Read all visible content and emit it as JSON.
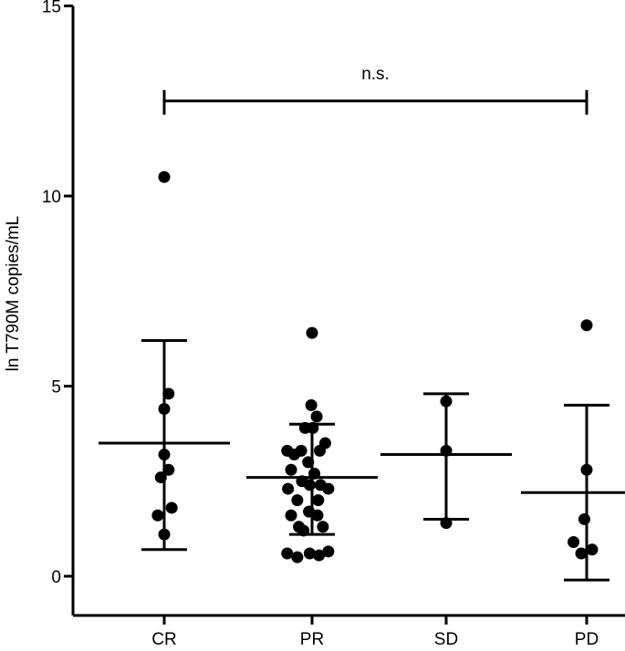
{
  "chart_data": {
    "type": "scatter",
    "title": "",
    "xlabel": "",
    "ylabel": "ln T790M copies/mL",
    "categories": [
      "CR",
      "PR",
      "SD",
      "PD"
    ],
    "ylim": [
      -1,
      15
    ],
    "yticks": [
      0,
      5,
      10,
      15
    ],
    "grid": false,
    "annotation": {
      "text": "n.s.",
      "from": "CR",
      "to": "PD",
      "y": 12.5
    },
    "groups": [
      {
        "name": "CR",
        "mean": 3.5,
        "sd_low": 0.7,
        "sd_high": 6.2,
        "points": [
          {
            "x_jitter": 0.0,
            "y": 10.5
          },
          {
            "x_jitter": 0.0,
            "y": 4.4
          },
          {
            "x_jitter": 0.28,
            "y": 4.8
          },
          {
            "x_jitter": 0.0,
            "y": 3.2
          },
          {
            "x_jitter": -0.22,
            "y": 2.6
          },
          {
            "x_jitter": 0.28,
            "y": 2.8
          },
          {
            "x_jitter": 0.48,
            "y": 1.8
          },
          {
            "x_jitter": -0.42,
            "y": 1.6
          },
          {
            "x_jitter": 0.0,
            "y": 1.1
          }
        ]
      },
      {
        "name": "PR",
        "mean": 2.6,
        "sd_low": 1.1,
        "sd_high": 4.0,
        "points": [
          {
            "x_jitter": 0.0,
            "y": 6.4
          },
          {
            "x_jitter": -0.05,
            "y": 4.5
          },
          {
            "x_jitter": 0.3,
            "y": 4.2
          },
          {
            "x_jitter": -0.45,
            "y": 3.9
          },
          {
            "x_jitter": 0.05,
            "y": 3.9
          },
          {
            "x_jitter": 0.85,
            "y": 3.5
          },
          {
            "x_jitter": -1.6,
            "y": 3.3
          },
          {
            "x_jitter": -0.7,
            "y": 3.3
          },
          {
            "x_jitter": 0.5,
            "y": 3.3
          },
          {
            "x_jitter": -1.15,
            "y": 3.2
          },
          {
            "x_jitter": -0.25,
            "y": 3.0
          },
          {
            "x_jitter": -1.35,
            "y": 2.8
          },
          {
            "x_jitter": -0.65,
            "y": 2.5
          },
          {
            "x_jitter": 0.15,
            "y": 2.7
          },
          {
            "x_jitter": -1.55,
            "y": 2.3
          },
          {
            "x_jitter": -0.15,
            "y": 2.4
          },
          {
            "x_jitter": 0.55,
            "y": 2.4
          },
          {
            "x_jitter": 1.05,
            "y": 2.3
          },
          {
            "x_jitter": -0.95,
            "y": 2.0
          },
          {
            "x_jitter": 0.4,
            "y": 2.0
          },
          {
            "x_jitter": -0.2,
            "y": 1.7
          },
          {
            "x_jitter": -1.35,
            "y": 1.6
          },
          {
            "x_jitter": 0.35,
            "y": 1.6
          },
          {
            "x_jitter": -0.85,
            "y": 1.3
          },
          {
            "x_jitter": 0.7,
            "y": 1.3
          },
          {
            "x_jitter": -0.55,
            "y": 1.2
          },
          {
            "x_jitter": -1.6,
            "y": 0.6
          },
          {
            "x_jitter": -0.95,
            "y": 0.5
          },
          {
            "x_jitter": -0.15,
            "y": 0.6
          },
          {
            "x_jitter": 0.45,
            "y": 0.55
          },
          {
            "x_jitter": 1.05,
            "y": 0.65
          }
        ]
      },
      {
        "name": "SD",
        "mean": 3.2,
        "sd_low": 1.5,
        "sd_high": 4.8,
        "points": [
          {
            "x_jitter": 0.0,
            "y": 4.6
          },
          {
            "x_jitter": 0.0,
            "y": 3.3
          },
          {
            "x_jitter": 0.0,
            "y": 1.4
          }
        ]
      },
      {
        "name": "PD",
        "mean": 2.2,
        "sd_low": -0.1,
        "sd_high": 4.5,
        "points": [
          {
            "x_jitter": 0.0,
            "y": 6.6
          },
          {
            "x_jitter": 0.0,
            "y": 2.8
          },
          {
            "x_jitter": -0.15,
            "y": 1.5
          },
          {
            "x_jitter": -0.85,
            "y": 0.9
          },
          {
            "x_jitter": -0.35,
            "y": 0.6
          },
          {
            "x_jitter": 0.35,
            "y": 0.7
          }
        ]
      }
    ]
  }
}
